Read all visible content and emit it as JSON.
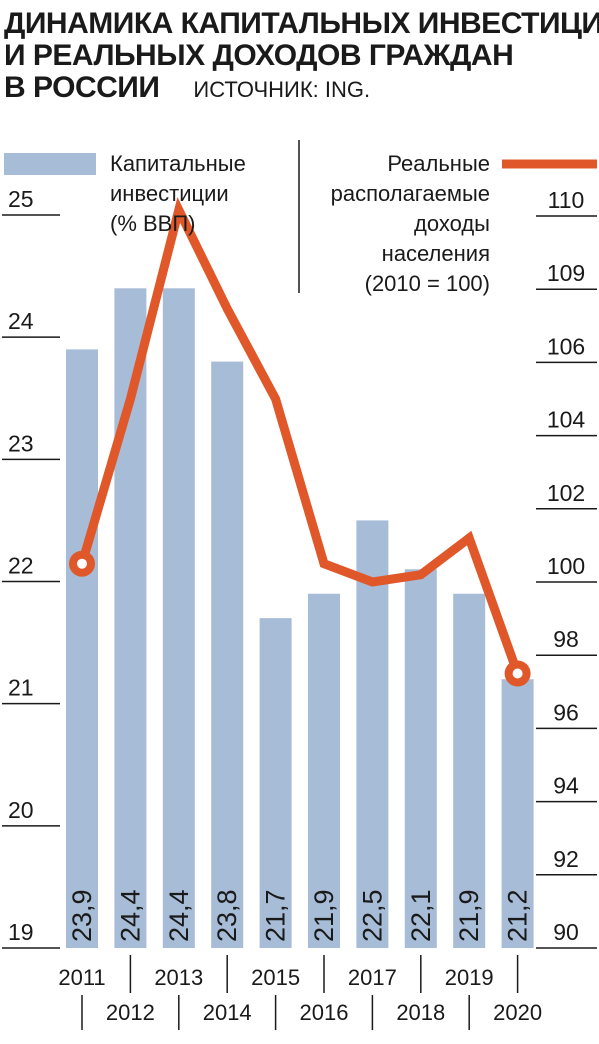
{
  "title_lines": [
    "ДИНАМИКА КАПИТАЛЬНЫХ ИНВЕСТИЦИЙ",
    "И РЕАЛЬНЫХ ДОХОДОВ ГРАЖДАН",
    "В РОССИИ"
  ],
  "source": "ИСТОЧНИК: ING.",
  "colors": {
    "bar": "#a7bcd6",
    "line": "#e0582a",
    "text": "#1a1a1a",
    "background": "#ffffff"
  },
  "chart_data": {
    "type": "bar+line",
    "categories": [
      "2011",
      "2012",
      "2013",
      "2014",
      "2015",
      "2016",
      "2017",
      "2018",
      "2019",
      "2020"
    ],
    "bar_series": {
      "name_lines": [
        "Капитальные",
        "инвестиции",
        "(% ВВП)"
      ],
      "values": [
        23.9,
        24.4,
        24.4,
        23.8,
        21.7,
        21.9,
        22.5,
        22.1,
        21.9,
        21.2
      ],
      "value_labels": [
        "23,9",
        "24,4",
        "24,4",
        "23,8",
        "21,7",
        "21,9",
        "22,5",
        "22,1",
        "21,9",
        "21,2"
      ],
      "axis": "left",
      "ylim": [
        19,
        25
      ],
      "ticks": [
        "25",
        "24",
        "23",
        "22",
        "21",
        "20",
        "19"
      ]
    },
    "line_series": {
      "name_lines": [
        "Реальные",
        "располагаемые",
        "доходы",
        "населения",
        "(2010 = 100)"
      ],
      "values": [
        100.5,
        105.0,
        110.3,
        108.2,
        105.0,
        100.5,
        100.0,
        100.2,
        101.2,
        97.5
      ],
      "axis": "right",
      "ylim": [
        90,
        110
      ],
      "ticks": [
        "110",
        "109",
        "106",
        "104",
        "102",
        "100",
        "98",
        "96",
        "94",
        "92",
        "90"
      ],
      "marker_categories": [
        "2011",
        "2020"
      ]
    },
    "legend_placement": "top",
    "grid": false
  }
}
